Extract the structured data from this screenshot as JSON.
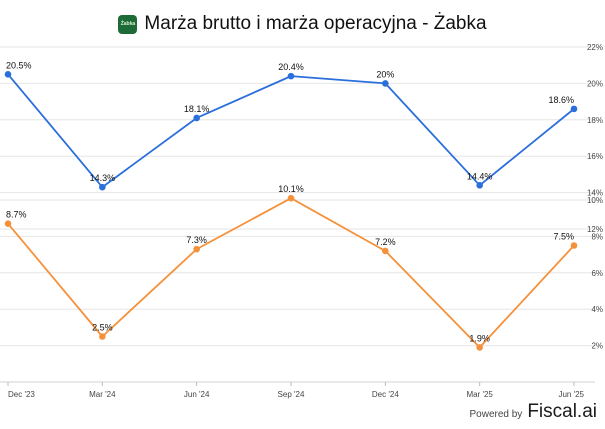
{
  "header": {
    "title": "Marża brutto i marża operacyjna - Żabka",
    "logo_text": "Żabka"
  },
  "footer": {
    "powered_by": "Powered by",
    "brand": "Fiscal.ai"
  },
  "chart_data": [
    {
      "type": "line",
      "categories": [
        "Dec '23",
        "Mar '24",
        "Jun '24",
        "Sep '24",
        "Dec '24",
        "Mar '25",
        "Jun '25"
      ],
      "series": [
        {
          "name": "",
          "color": "#2a6fdb",
          "values": [
            20.5,
            14.3,
            18.1,
            20.4,
            20.0,
            14.4,
            18.6
          ],
          "labels": [
            "20.5%",
            "14.3%",
            "18.1%",
            "20.4%",
            "20%",
            "14.4%",
            "18.6%"
          ]
        }
      ],
      "ylim": [
        12,
        22
      ],
      "yticks": [
        12,
        14,
        16,
        18,
        20,
        22
      ],
      "ytick_labels": [
        "12%",
        "14%",
        "16%",
        "18%",
        "20%",
        "22%"
      ],
      "grid": true
    },
    {
      "type": "line",
      "categories": [
        "Dec '23",
        "Mar '24",
        "Jun '24",
        "Sep '24",
        "Dec '24",
        "Mar '25",
        "Jun '25"
      ],
      "series": [
        {
          "name": "",
          "color": "#f5913a",
          "values": [
            8.7,
            2.5,
            7.3,
            10.1,
            7.2,
            1.9,
            7.5
          ],
          "labels": [
            "8.7%",
            "2.5%",
            "7.3%",
            "10.1%",
            "7.2%",
            "1.9%",
            "7.5%"
          ]
        }
      ],
      "ylim": [
        0,
        10
      ],
      "yticks": [
        2,
        4,
        6,
        8,
        10
      ],
      "ytick_labels": [
        "2%",
        "4%",
        "6%",
        "8%",
        "10%"
      ],
      "grid": true
    }
  ]
}
